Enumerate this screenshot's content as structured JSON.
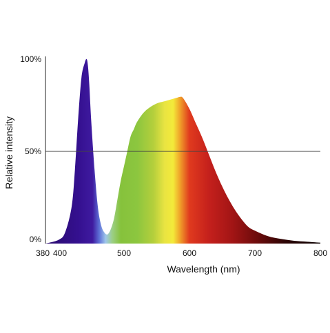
{
  "chart_data": {
    "type": "area",
    "title": "",
    "xlabel": "Wavelength (nm)",
    "ylabel": "Relative intensity",
    "xlim": [
      380,
      800
    ],
    "ylim": [
      0,
      100
    ],
    "x_ticks": [
      380,
      400,
      500,
      600,
      700,
      800
    ],
    "x_tick_labels": [
      "380",
      "400",
      "500",
      "600",
      "700",
      "800"
    ],
    "y_ticks": [
      0,
      50,
      100
    ],
    "y_tick_labels": [
      "0%",
      "50%",
      "100%"
    ],
    "reference_line_y": 50,
    "grid": false,
    "legend": "none",
    "fill": "visible-spectrum color gradient",
    "series": [
      {
        "x": [
          380,
          400,
          410,
          420,
          425,
          430,
          435,
          440,
          443,
          445,
          447,
          450,
          455,
          460,
          465,
          470,
          475,
          480,
          485,
          490,
          495,
          500,
          505,
          510,
          515,
          520,
          530,
          540,
          550,
          560,
          570,
          580,
          585,
          590,
          600,
          610,
          620,
          630,
          640,
          650,
          660,
          670,
          680,
          690,
          700,
          720,
          740,
          760,
          780,
          800
        ],
        "values": [
          0,
          2,
          6,
          20,
          40,
          68,
          90,
          98,
          100,
          96,
          86,
          66,
          40,
          20,
          10,
          6,
          5,
          8,
          14,
          24,
          34,
          42,
          50,
          58,
          62,
          66,
          71,
          74,
          76,
          77,
          78,
          79,
          79.5,
          79,
          73,
          65,
          57,
          48,
          39,
          31,
          24,
          18,
          13,
          9,
          7,
          4,
          2.5,
          1.5,
          1,
          0.5
        ]
      }
    ]
  }
}
